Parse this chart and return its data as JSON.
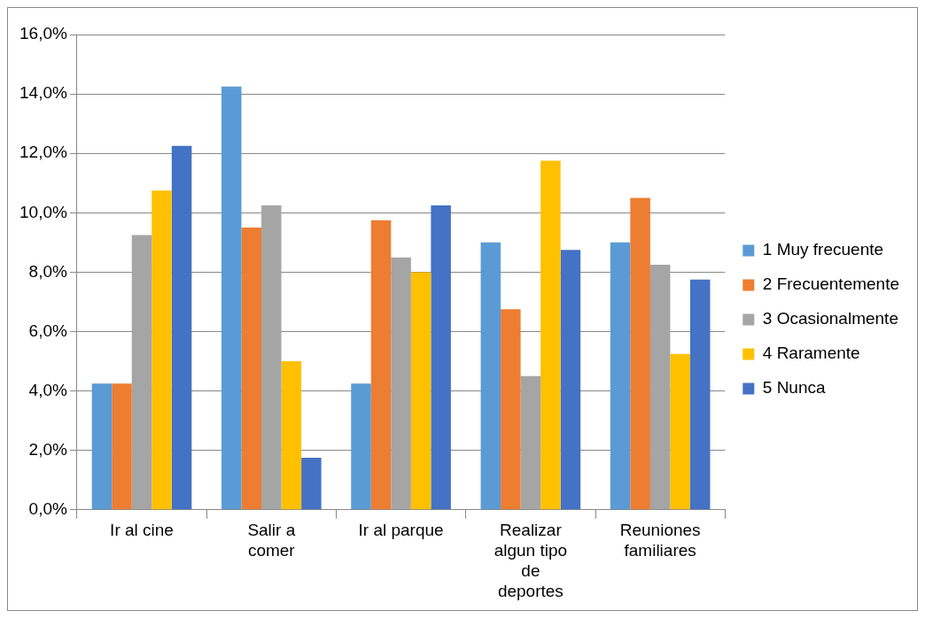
{
  "chart_data": {
    "type": "bar",
    "categories": [
      "Ir al cine",
      "Salir a\ncomer",
      "Ir al parque",
      "Realizar\nalgun tipo\nde\ndeportes",
      "Reuniones\nfamiliares"
    ],
    "series": [
      {
        "name": "1 Muy frecuente",
        "color": "#5b9bd5",
        "values": [
          4.25,
          14.25,
          4.25,
          9,
          9
        ]
      },
      {
        "name": "2 Frecuentemente",
        "color": "#ed7d31",
        "values": [
          4.25,
          9.5,
          9.75,
          6.75,
          10.5
        ]
      },
      {
        "name": "3 Ocasionalmente",
        "color": "#a5a5a5",
        "values": [
          9.25,
          10.25,
          8.5,
          4.5,
          8.25
        ]
      },
      {
        "name": "4 Raramente",
        "color": "#ffc000",
        "values": [
          10.75,
          5,
          8,
          11.75,
          5.25
        ]
      },
      {
        "name": "5 Nunca",
        "color": "#4472c4",
        "values": [
          12.25,
          1.75,
          10.25,
          8.75,
          7.75
        ]
      }
    ],
    "ylim": [
      0,
      16
    ],
    "yticks": [
      {
        "value": 0,
        "label": "0,0%"
      },
      {
        "value": 2,
        "label": "2,0%"
      },
      {
        "value": 4,
        "label": "4,0%"
      },
      {
        "value": 6,
        "label": "6,0%"
      },
      {
        "value": 8,
        "label": "8,0%"
      },
      {
        "value": 10,
        "label": "10,0%"
      },
      {
        "value": 12,
        "label": "12,0%"
      },
      {
        "value": 14,
        "label": "14,0%"
      },
      {
        "value": 16,
        "label": "16,0%"
      }
    ],
    "grid": "y",
    "legend": "right"
  }
}
